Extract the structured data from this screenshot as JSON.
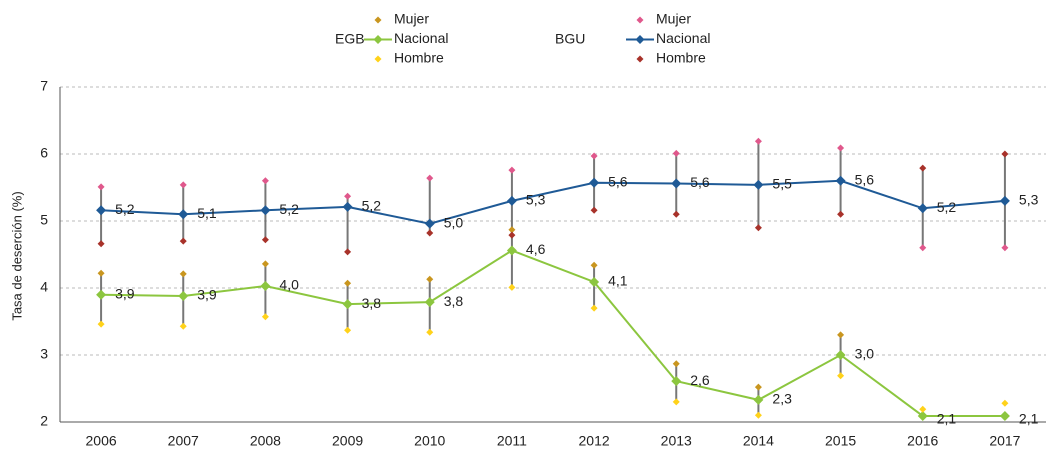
{
  "chart_data": {
    "type": "line",
    "y_label": "Tasa de deserción (%)",
    "categories": [
      "2006",
      "2007",
      "2008",
      "2009",
      "2010",
      "2011",
      "2012",
      "2013",
      "2014",
      "2015",
      "2016",
      "2017"
    ],
    "ylim": [
      2,
      7
    ],
    "yticks": [
      2,
      3,
      4,
      5,
      6,
      7
    ],
    "grid": true,
    "series": [
      {
        "group": "EGB",
        "name": "Mujer",
        "color": "#c9961f",
        "role": "range-top",
        "values": [
          4.22,
          4.21,
          4.36,
          4.07,
          4.13,
          4.87,
          4.34,
          2.87,
          2.52,
          3.3,
          null,
          null
        ]
      },
      {
        "group": "EGB",
        "name": "Nacional",
        "color": "#8cc63f",
        "role": "line",
        "values": [
          3.9,
          3.88,
          4.03,
          3.76,
          3.79,
          4.56,
          4.09,
          2.61,
          2.33,
          3.0,
          2.09,
          2.09
        ],
        "value_labels": [
          "3,9",
          "3,9",
          "4,0",
          "3,8",
          "3,8",
          "4,6",
          "4,1",
          "2,6",
          "2,3",
          "3,0",
          "2,1",
          "2,1"
        ]
      },
      {
        "group": "EGB",
        "name": "Hombre",
        "color": "#ffd21a",
        "role": "range-bottom",
        "values": [
          3.46,
          3.43,
          3.57,
          3.37,
          3.34,
          4.01,
          3.7,
          2.3,
          2.1,
          2.69,
          2.19,
          2.28
        ]
      },
      {
        "group": "BGU",
        "name": "Mujer",
        "color": "#e0588c",
        "role": "range-top",
        "values": [
          5.51,
          5.54,
          5.6,
          5.37,
          5.64,
          5.76,
          5.97,
          6.01,
          6.19,
          6.09,
          4.6,
          4.6
        ]
      },
      {
        "group": "BGU",
        "name": "Nacional",
        "color": "#1f5a96",
        "role": "line",
        "values": [
          5.16,
          5.1,
          5.16,
          5.21,
          4.96,
          5.3,
          5.57,
          5.56,
          5.54,
          5.6,
          5.19,
          5.3
        ],
        "value_labels": [
          "5,2",
          "5,1",
          "5,2",
          "5,2",
          "5,0",
          "5,3",
          "5,6",
          "5,6",
          "5,5",
          "5,6",
          "5,2",
          "5,3"
        ]
      },
      {
        "group": "BGU",
        "name": "Hombre",
        "color": "#a8322a",
        "role": "range-bottom",
        "values": [
          4.66,
          4.7,
          4.72,
          4.54,
          4.82,
          4.79,
          5.16,
          5.1,
          4.9,
          5.1,
          5.79,
          6.0
        ]
      }
    ]
  }
}
